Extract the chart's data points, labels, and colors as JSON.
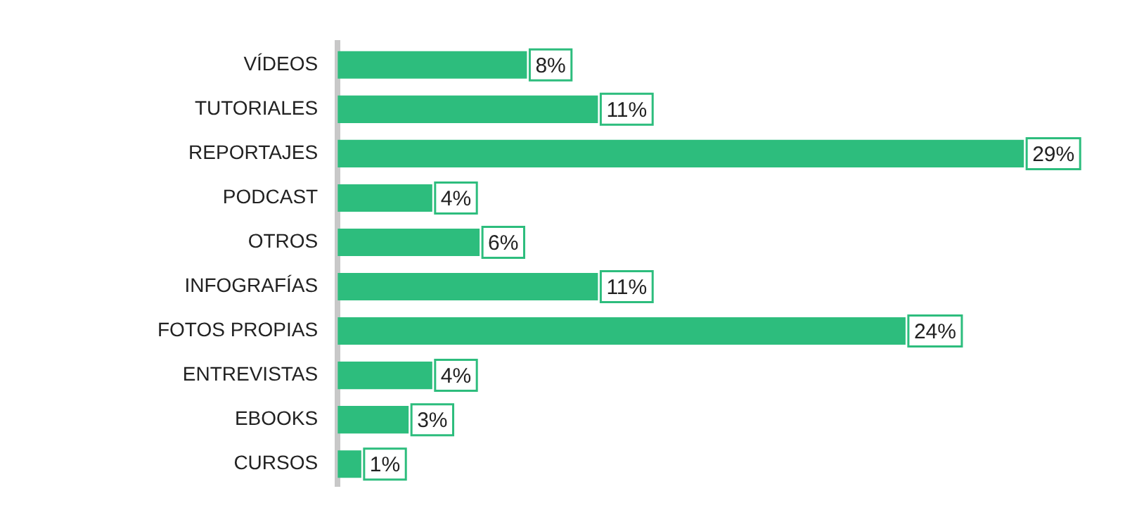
{
  "chart_data": {
    "type": "bar",
    "orientation": "horizontal",
    "categories": [
      "VÍDEOS",
      "TUTORIALES",
      "REPORTAJES",
      "PODCAST",
      "OTROS",
      "INFOGRAFÍAS",
      "FOTOS PROPIAS",
      "ENTREVISTAS",
      "EBOOKS",
      "CURSOS"
    ],
    "values": [
      8,
      11,
      29,
      4,
      6,
      11,
      24,
      4,
      3,
      1
    ],
    "value_labels": [
      "8%",
      "11%",
      "29%",
      "4%",
      "6%",
      "11%",
      "24%",
      "4%",
      "3%",
      "1%"
    ],
    "color": "#2dbd7d",
    "grid": false,
    "legend": false
  }
}
